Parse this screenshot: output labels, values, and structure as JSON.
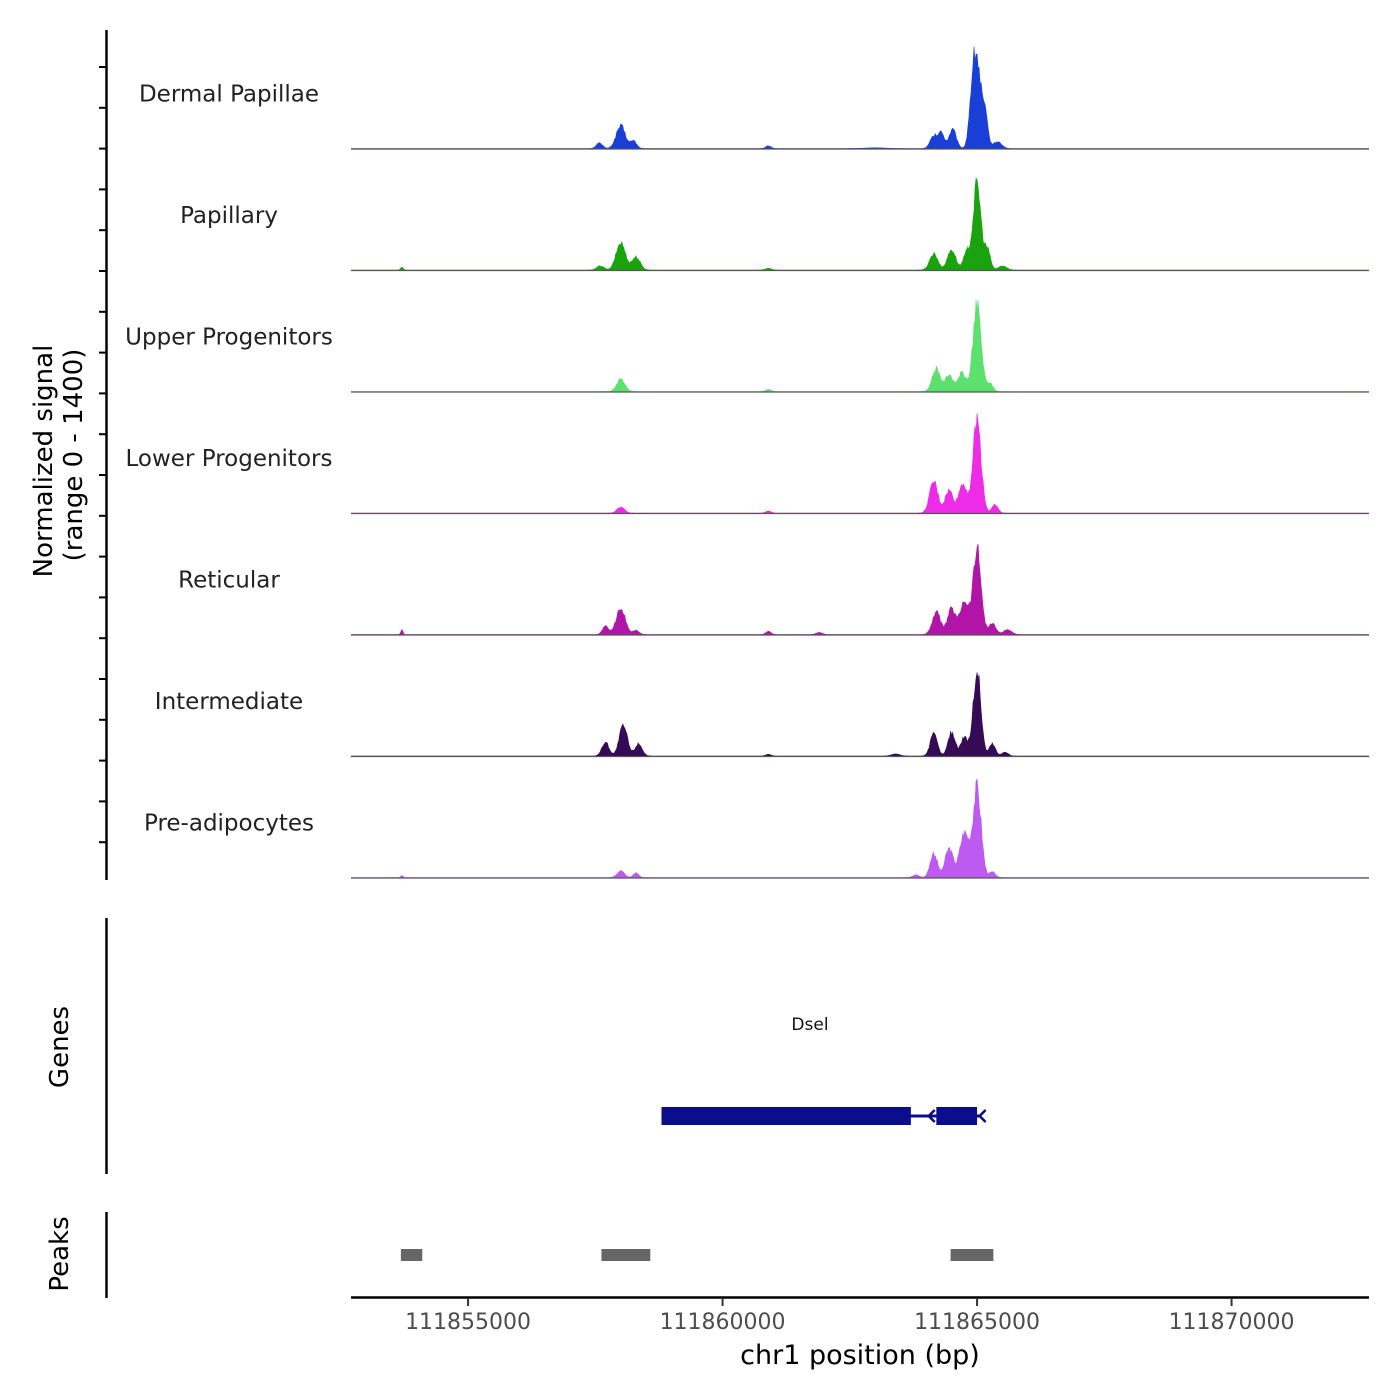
{
  "chart_data": {
    "type": "area",
    "title": "",
    "ylabel_line1": "Normalized signal",
    "ylabel_line2": "(range 0 - 1400)",
    "ylim": [
      0,
      1400
    ],
    "xlabel": "chr1 position (bp)",
    "xlim": [
      111852700,
      111872700
    ],
    "xticks": [
      111855000,
      111860000,
      111865000,
      111870000
    ],
    "xtick_labels": [
      "111855000",
      "111860000",
      "111865000",
      "111870000"
    ],
    "peak_shape_note": "each track drawn as sum of gaussian peaks: [center_bp, height, sigma_bp]",
    "tracks": [
      {
        "name": "Dermal Papillae",
        "color": "#1a3fd6",
        "peaks": [
          [
            111857580,
            80,
            60
          ],
          [
            111858000,
            330,
            90
          ],
          [
            111858250,
            110,
            60
          ],
          [
            111860900,
            40,
            50
          ],
          [
            111863000,
            10,
            200
          ],
          [
            111864150,
            180,
            70
          ],
          [
            111864300,
            220,
            60
          ],
          [
            111864520,
            280,
            70
          ],
          [
            111864900,
            650,
            60
          ],
          [
            111865000,
            1200,
            70
          ],
          [
            111865150,
            500,
            60
          ],
          [
            111865400,
            100,
            80
          ]
        ]
      },
      {
        "name": "Papillary",
        "color": "#1aa30e",
        "peaks": [
          [
            111853700,
            40,
            25
          ],
          [
            111857600,
            60,
            70
          ],
          [
            111858000,
            400,
            90
          ],
          [
            111858300,
            190,
            80
          ],
          [
            111860900,
            25,
            60
          ],
          [
            111864150,
            240,
            80
          ],
          [
            111864500,
            300,
            80
          ],
          [
            111864800,
            250,
            70
          ],
          [
            111865000,
            1250,
            75
          ],
          [
            111865200,
            300,
            60
          ],
          [
            111865500,
            60,
            80
          ]
        ]
      },
      {
        "name": "Upper Progenitors",
        "color": "#5ce06e",
        "peaks": [
          [
            111858000,
            180,
            80
          ],
          [
            111860900,
            30,
            50
          ],
          [
            111864200,
            340,
            80
          ],
          [
            111864450,
            250,
            70
          ],
          [
            111864700,
            270,
            80
          ],
          [
            111865000,
            1250,
            80
          ],
          [
            111865250,
            120,
            60
          ]
        ]
      },
      {
        "name": "Lower Progenitors",
        "color": "#ee2ce8",
        "peaks": [
          [
            111858000,
            90,
            70
          ],
          [
            111860900,
            30,
            50
          ],
          [
            111864150,
            460,
            80
          ],
          [
            111864450,
            330,
            80
          ],
          [
            111864720,
            430,
            80
          ],
          [
            111865000,
            1350,
            80
          ],
          [
            111865350,
            120,
            60
          ]
        ]
      },
      {
        "name": "Reticular",
        "color": "#b015a8",
        "peaks": [
          [
            111853700,
            70,
            20
          ],
          [
            111857700,
            120,
            60
          ],
          [
            111858000,
            380,
            90
          ],
          [
            111858300,
            60,
            60
          ],
          [
            111860900,
            45,
            50
          ],
          [
            111861900,
            30,
            60
          ],
          [
            111864200,
            330,
            80
          ],
          [
            111864500,
            380,
            80
          ],
          [
            111864750,
            500,
            80
          ],
          [
            111865000,
            1250,
            80
          ],
          [
            111865300,
            160,
            70
          ],
          [
            111865600,
            70,
            80
          ]
        ]
      },
      {
        "name": "Intermediate",
        "color": "#360a55",
        "peaks": [
          [
            111857700,
            200,
            70
          ],
          [
            111858050,
            440,
            80
          ],
          [
            111858350,
            180,
            70
          ],
          [
            111860900,
            25,
            50
          ],
          [
            111863400,
            30,
            80
          ],
          [
            111864150,
            320,
            70
          ],
          [
            111864500,
            350,
            70
          ],
          [
            111864750,
            280,
            70
          ],
          [
            111865000,
            1250,
            75
          ],
          [
            111865300,
            180,
            60
          ],
          [
            111865550,
            60,
            60
          ]
        ]
      },
      {
        "name": "Pre-adipocytes",
        "color": "#bd5af2",
        "peaks": [
          [
            111853700,
            30,
            20
          ],
          [
            111858000,
            100,
            70
          ],
          [
            111858300,
            70,
            50
          ],
          [
            111863800,
            40,
            60
          ],
          [
            111864150,
            360,
            70
          ],
          [
            111864450,
            420,
            80
          ],
          [
            111864750,
            650,
            90
          ],
          [
            111865000,
            1300,
            80
          ],
          [
            111865300,
            80,
            60
          ]
        ]
      }
    ],
    "genes": {
      "label": "Genes",
      "color": "#0a0d8c",
      "items": [
        {
          "name": "Dsel",
          "strand": "-",
          "exons": [
            [
              111858800,
              111863700
            ],
            [
              111864200,
              111865000
            ]
          ],
          "span": [
            111858800,
            111865050
          ]
        }
      ]
    },
    "peaks_track": {
      "label": "Peaks",
      "color": "#666666",
      "regions": [
        [
          111853680,
          111854100
        ],
        [
          111857620,
          111858580
        ],
        [
          111864480,
          111865320
        ]
      ]
    }
  }
}
